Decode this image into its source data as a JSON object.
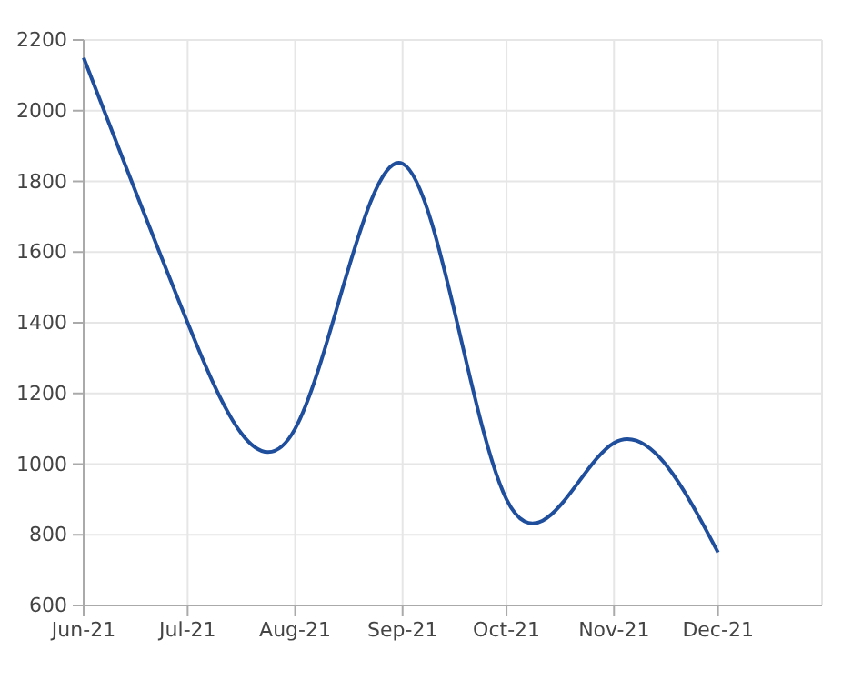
{
  "chart_data": {
    "type": "line",
    "x": [
      "2021-06",
      "2021-07",
      "2021-08",
      "2021-09",
      "2021-10",
      "2021-11",
      "2021-12"
    ],
    "series": [
      {
        "color": "#1f4e9c",
        "values": [
          2150,
          1400,
          1100,
          1850,
          900,
          1060,
          750
        ]
      }
    ],
    "xlim": [
      "2021-06-01",
      "2021-12-31"
    ],
    "xticks": [
      {
        "value": "2021-06",
        "label": "Jun-21"
      },
      {
        "value": "2021-07",
        "label": "Jul-21"
      },
      {
        "value": "2021-08",
        "label": "Aug-21"
      },
      {
        "value": "2021-09",
        "label": "Sep-21"
      },
      {
        "value": "2021-10",
        "label": "Oct-21"
      },
      {
        "value": "2021-11",
        "label": "Nov-21"
      },
      {
        "value": "2021-12",
        "label": "Dec-21"
      }
    ],
    "ylim": [
      600,
      2200
    ],
    "yticks": [
      600,
      800,
      1000,
      1200,
      1400,
      1600,
      1800,
      2000,
      2200
    ],
    "grid": true,
    "marker": "none",
    "line_style": "solid"
  }
}
